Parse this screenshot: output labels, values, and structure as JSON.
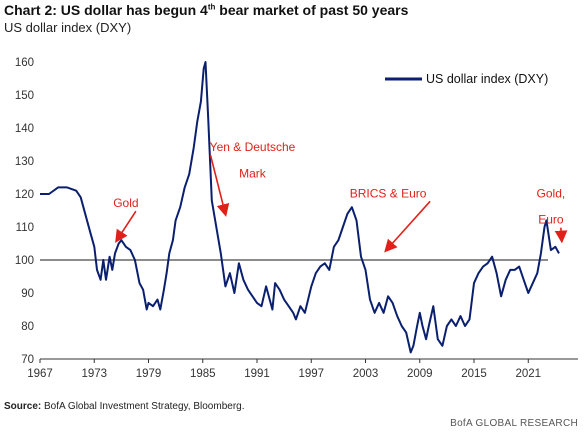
{
  "title_main": "Chart 2: US dollar has begun 4",
  "title_sup": "th",
  "title_rest": " bear market of past 50 years",
  "subtitle": "US dollar index (DXY)",
  "source_label": "Source:",
  "source_text": "BofA Global Investment Strategy, Bloomberg.",
  "footer": "BofA GLOBAL RESEARCH",
  "colors": {
    "series": "#0a1f6e",
    "reference": "#8c8c8c",
    "annotation": "#e0211a"
  },
  "chart_data": {
    "type": "line",
    "xlim": [
      1967,
      2026.5
    ],
    "ylim": [
      70,
      160
    ],
    "y_ticks": [
      70,
      80,
      90,
      100,
      110,
      120,
      130,
      140,
      150,
      160
    ],
    "x_ticks": [
      1967,
      1973,
      1979,
      1985,
      1991,
      1997,
      2003,
      2009,
      2015,
      2021
    ],
    "reference_line": 100,
    "legend": "top-right",
    "series": [
      {
        "name": "US dollar index (DXY)",
        "x": [
          1967.0,
          1968.0,
          1969.0,
          1970.0,
          1971.0,
          1971.5,
          1972.0,
          1972.5,
          1973.0,
          1973.3,
          1973.7,
          1974.0,
          1974.3,
          1974.7,
          1975.0,
          1975.3,
          1975.7,
          1976.0,
          1976.5,
          1977.0,
          1977.5,
          1978.0,
          1978.4,
          1978.8,
          1979.0,
          1979.5,
          1980.0,
          1980.3,
          1980.7,
          1981.0,
          1981.3,
          1981.7,
          1982.0,
          1982.5,
          1983.0,
          1983.5,
          1984.0,
          1984.4,
          1984.8,
          1985.1,
          1985.3,
          1985.6,
          1986.0,
          1986.5,
          1987.0,
          1987.5,
          1988.0,
          1988.5,
          1989.0,
          1989.5,
          1990.0,
          1990.5,
          1991.0,
          1991.5,
          1992.0,
          1992.7,
          1993.0,
          1993.5,
          1994.0,
          1994.5,
          1995.0,
          1995.3,
          1995.8,
          1996.3,
          1997.0,
          1997.5,
          1998.0,
          1998.5,
          1999.0,
          1999.5,
          2000.0,
          2000.5,
          2001.0,
          2001.5,
          2002.0,
          2002.5,
          2003.0,
          2003.5,
          2004.0,
          2004.5,
          2005.0,
          2005.5,
          2006.0,
          2006.5,
          2007.0,
          2007.5,
          2008.0,
          2008.3,
          2008.7,
          2009.0,
          2009.3,
          2009.7,
          2010.0,
          2010.5,
          2011.0,
          2011.5,
          2012.0,
          2012.5,
          2013.0,
          2013.5,
          2014.0,
          2014.5,
          2015.0,
          2015.5,
          2016.0,
          2016.5,
          2017.0,
          2017.5,
          2018.0,
          2018.5,
          2019.0,
          2019.5,
          2020.0,
          2020.5,
          2021.0,
          2021.5,
          2022.0,
          2022.4,
          2022.8,
          2023.0,
          2023.5,
          2024.0,
          2024.4
        ],
        "y": [
          120,
          120,
          122,
          122,
          121,
          119,
          114,
          109,
          104,
          97,
          94,
          100,
          94,
          101,
          97,
          102,
          105,
          106,
          104,
          103,
          100,
          93,
          91,
          85,
          87,
          86,
          88,
          85,
          91,
          96,
          102,
          106,
          112,
          116,
          122,
          126,
          134,
          142,
          148,
          158,
          160,
          143,
          118,
          110,
          102,
          92,
          96,
          90,
          99,
          94,
          91,
          89,
          87,
          86,
          92,
          85,
          93,
          91,
          88,
          86,
          84,
          82,
          86,
          84,
          92,
          96,
          98,
          99,
          97,
          104,
          106,
          110,
          114,
          116,
          112,
          101,
          97,
          88,
          84,
          87,
          84,
          89,
          87,
          83,
          80,
          78,
          72,
          74,
          80,
          84,
          80,
          76,
          80,
          86,
          76,
          74,
          80,
          82,
          80,
          83,
          80,
          82,
          93,
          96,
          98,
          99,
          101,
          96,
          89,
          94,
          97,
          97,
          98,
          94,
          90,
          93,
          96,
          102,
          110,
          112,
          103,
          104,
          102
        ]
      }
    ],
    "annotations": [
      {
        "text": "Gold",
        "x": 1976.5,
        "y": 116,
        "arrow_to": [
          1975.5,
          106
        ]
      },
      {
        "text": "Yen & Deutsche",
        "x": 1990.5,
        "y": 133,
        "arrow_to": [
          1987.5,
          114
        ]
      },
      {
        "text": "Mark",
        "x": 1990.5,
        "y": 125
      },
      {
        "text": "BRICS & Euro",
        "x": 2005.5,
        "y": 119,
        "arrow_to": [
          2005.3,
          103
        ]
      },
      {
        "text": "Gold,",
        "x": 2023.5,
        "y": 119
      },
      {
        "text": "Euro",
        "x": 2023.5,
        "y": 111,
        "arrow_to": [
          2024.7,
          106
        ]
      }
    ]
  }
}
